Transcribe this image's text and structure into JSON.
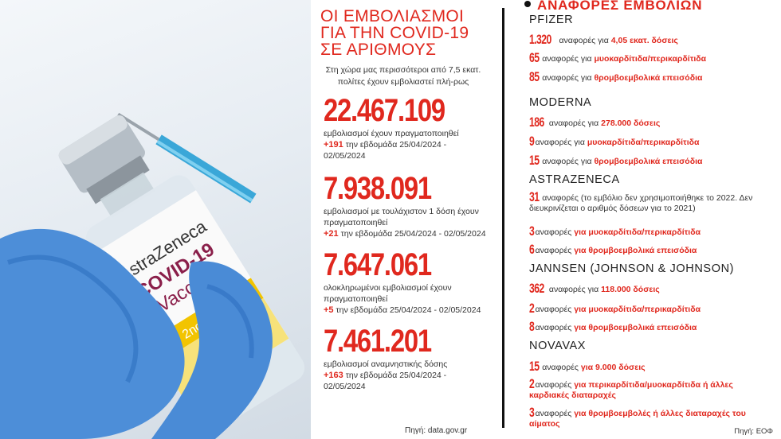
{
  "middle": {
    "title_lines": [
      "ΟΙ ΕΜΒΟΛΙΑΣΜΟΙ",
      "ΓΙΑ ΤΗΝ COVID-19",
      "ΣΕ ΑΡΙΘΜΟΥΣ"
    ],
    "intro": "Στη χώρα μας περισσότεροι από 7,5 εκατ. πολίτες έχουν εμβολιαστεί πλή-ρως",
    "stats": [
      {
        "value": "22.467.109",
        "desc": "εμβολιασμοί έχουν πραγματοποιηθεί",
        "increase": "+191",
        "period": "την εβδομάδα 25/04/2024 - 02/05/2024"
      },
      {
        "value": "7.938.091",
        "desc": "εμβολιασμοί με τουλάχιστον 1 δόση έχουν πραγματοποιηθεί",
        "increase": "+21",
        "period": "την εβδομάδα 25/04/2024 - 02/05/2024"
      },
      {
        "value": "7.647.061",
        "desc": "ολοκληρωμένοι εμβολιασμοί έχουν πραγματοποιηθεί",
        "increase": "+5",
        "period": "την εβδομάδα 25/04/2024 - 02/05/2024"
      },
      {
        "value": "7.461.201",
        "desc": "εμβολιασμοί αναμνηστικής δόσης",
        "increase": "+163",
        "period": "την εβδομάδα 25/04/2024 - 02/05/2024"
      }
    ],
    "source": "Πηγή: data.gov.gr"
  },
  "photo": {
    "label_brand": "AstraZeneca",
    "label_product": "COVID-19",
    "label_product2": "Vaccine",
    "label_dose": "2nd Dose"
  },
  "right": {
    "title": "ΑΝΑΦΟΡΕΣ ΕΜΒΟΛΙΩΝ",
    "source": "Πηγή: ΕΟΦ",
    "vendors": [
      {
        "name": "PFIZER",
        "rows": [
          {
            "num": "1.320",
            "text": "αναφορές για",
            "highlight": "4,05 εκατ. δόσεις"
          },
          {
            "num": "65",
            "text": "αναφορές για",
            "highlight": "μυοκαρδίτιδα/περικαρδίτιδα"
          },
          {
            "num": "85",
            "text": "αναφορές για",
            "highlight": "θρομβοεμβολικά επεισόδια"
          }
        ]
      },
      {
        "name": "MODERNA",
        "rows": [
          {
            "num": "186",
            "text": "αναφορές για",
            "highlight": "278.000 δόσεις"
          },
          {
            "num": "9",
            "text": "αναφορές για",
            "highlight": "μυοκαρδίτιδα/περικαρδίτιδα"
          },
          {
            "num": "15",
            "text": "αναφορές για",
            "highlight": "θρομβοεμβολικά επεισόδια"
          }
        ]
      },
      {
        "name": "ASTRAZENECA",
        "rows": [
          {
            "num": "31",
            "text": "αναφορές (το εμβόλιο δεν χρησιμοποιήθηκε το 2022. Δεν διευκρινίζεται ο αριθμός δόσεων για το 2021)",
            "highlight": ""
          },
          {
            "num": "3",
            "text": "αναφορές",
            "highlight": "για μυοκαρδίτιδα/περικαρδίτιδα"
          },
          {
            "num": "6",
            "text": "αναφορές",
            "highlight": "για θρομβοεμβολικά επεισόδια"
          }
        ]
      },
      {
        "name": "JANNSEN (JOHNSON & JOHNSON)",
        "rows": [
          {
            "num": "362",
            "text": "αναφορές για",
            "highlight": "118.000 δόσεις"
          },
          {
            "num": "2",
            "text": "αναφορές",
            "highlight": "για μυοκαρδίτιδα/περικαρδίτιδα"
          },
          {
            "num": "8",
            "text": "αναφορές",
            "highlight": "για θρομβοεμβολικά επεισόδια"
          }
        ]
      },
      {
        "name": "NOVAVAX",
        "rows": [
          {
            "num": "15",
            "text": "αναφορές",
            "highlight": "για 9.000 δόσεις"
          },
          {
            "num": "2",
            "text": "αναφορές",
            "highlight": "για περικαρδίτιδα/μυοκαρδίτιδα ή άλλες καρδιακές διαταραχές"
          },
          {
            "num": "3",
            "text": "αναφορές",
            "highlight": "για θρομβοεμβολές ή άλλες διαταραχές του αίματος"
          }
        ]
      }
    ]
  }
}
